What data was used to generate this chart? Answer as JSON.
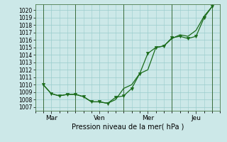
{
  "xlabel": "Pression niveau de la mer( hPa )",
  "bg_color": "#cce8e8",
  "grid_color": "#99cccc",
  "line_color": "#1a6b1a",
  "marker_color": "#1a6b1a",
  "ylim_min": 1006.5,
  "ylim_max": 1020.8,
  "yticks": [
    1007,
    1008,
    1009,
    1010,
    1011,
    1012,
    1013,
    1014,
    1015,
    1016,
    1017,
    1018,
    1019,
    1020
  ],
  "day_labels": [
    "Mar",
    "Ven",
    "Mer",
    "Jeu"
  ],
  "day_positions": [
    0.5,
    3.5,
    6.5,
    9.5
  ],
  "vline_positions": [
    0.0,
    2.0,
    5.0,
    8.0,
    10.5
  ],
  "xlim_min": -0.5,
  "xlim_max": 11.0,
  "series1_x": [
    0.0,
    0.5,
    1.0,
    1.5,
    2.0,
    2.5,
    3.0,
    3.5,
    4.0,
    4.5,
    5.0,
    5.5,
    6.0,
    6.5,
    7.0,
    7.5,
    8.0,
    8.5,
    9.0,
    9.5,
    10.0,
    10.5
  ],
  "series1_y": [
    1010.0,
    1008.8,
    1008.5,
    1008.7,
    1008.7,
    1008.4,
    1007.7,
    1007.7,
    1007.5,
    1008.0,
    1009.5,
    1010.0,
    1011.5,
    1012.0,
    1015.0,
    1015.2,
    1016.2,
    1016.7,
    1016.5,
    1017.3,
    1019.2,
    1020.5
  ],
  "series2_x": [
    0.0,
    0.5,
    1.0,
    1.5,
    2.0,
    2.5,
    3.0,
    3.5,
    4.0,
    4.5,
    5.0,
    5.5,
    6.0,
    6.5,
    7.0,
    7.5,
    8.0,
    8.5,
    9.0,
    9.5,
    10.0,
    10.5
  ],
  "series2_y": [
    1010.0,
    1008.8,
    1008.5,
    1008.7,
    1008.7,
    1008.4,
    1007.7,
    1007.7,
    1007.5,
    1008.3,
    1008.5,
    1009.5,
    1011.5,
    1014.2,
    1015.0,
    1015.2,
    1016.3,
    1016.5,
    1016.2,
    1016.5,
    1019.0,
    1020.5
  ]
}
